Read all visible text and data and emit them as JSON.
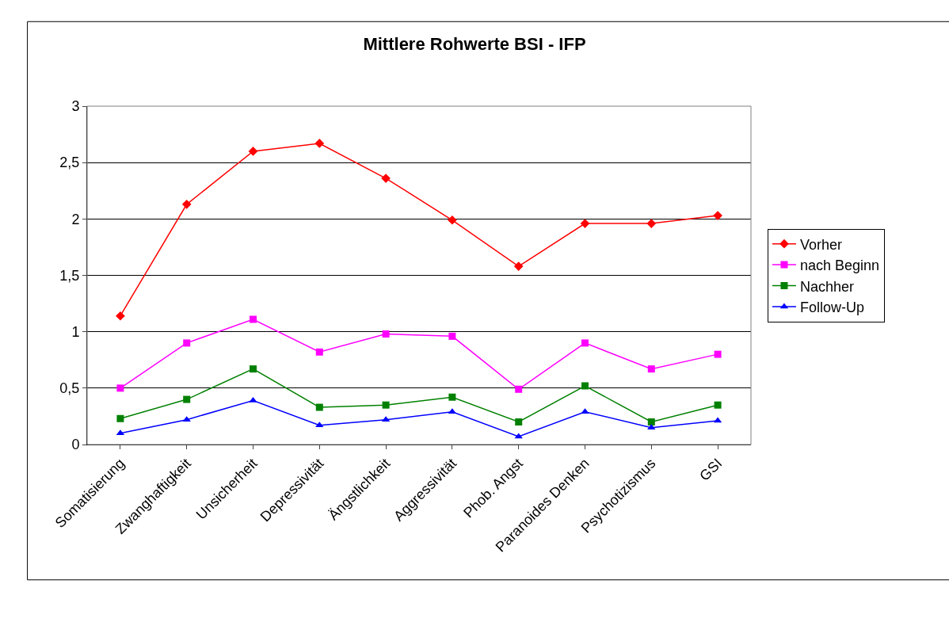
{
  "chart_data": {
    "type": "line",
    "title": "Mittlere Rohwerte BSI - IFP",
    "categories": [
      "Somatisierung",
      "Zwanghaftigkeit",
      "Unsicherheit",
      "Depressivität",
      "Ängstlichkeit",
      "Aggressivität",
      "Phob. Angst",
      "Paranoides Denken",
      "Psychotizismus",
      "GSI"
    ],
    "series": [
      {
        "name": "Vorher",
        "color": "#ff0000",
        "marker": "diamond",
        "values": [
          1.14,
          2.13,
          2.6,
          2.67,
          2.36,
          1.99,
          1.58,
          1.96,
          1.96,
          2.03
        ]
      },
      {
        "name": "nach Beginn",
        "color": "#ff00ff",
        "marker": "square",
        "values": [
          0.5,
          0.9,
          1.11,
          0.82,
          0.98,
          0.96,
          0.49,
          0.9,
          0.67,
          0.8
        ]
      },
      {
        "name": "Nachher",
        "color": "#008000",
        "marker": "square",
        "values": [
          0.23,
          0.4,
          0.67,
          0.33,
          0.35,
          0.42,
          0.2,
          0.52,
          0.2,
          0.35
        ]
      },
      {
        "name": "Follow-Up",
        "color": "#0000ff",
        "marker": "triangle",
        "values": [
          0.1,
          0.22,
          0.39,
          0.17,
          0.22,
          0.29,
          0.07,
          0.29,
          0.15,
          0.21
        ]
      }
    ],
    "ylim": [
      0,
      3
    ],
    "yticks": [
      0,
      {
        "value": 0.5,
        "label": "0,5"
      },
      1,
      {
        "value": 1.5,
        "label": "1,5"
      },
      2,
      {
        "value": 2.5,
        "label": "2,5"
      },
      3
    ],
    "grid": "y",
    "legend": "right",
    "line_style": "solid"
  }
}
